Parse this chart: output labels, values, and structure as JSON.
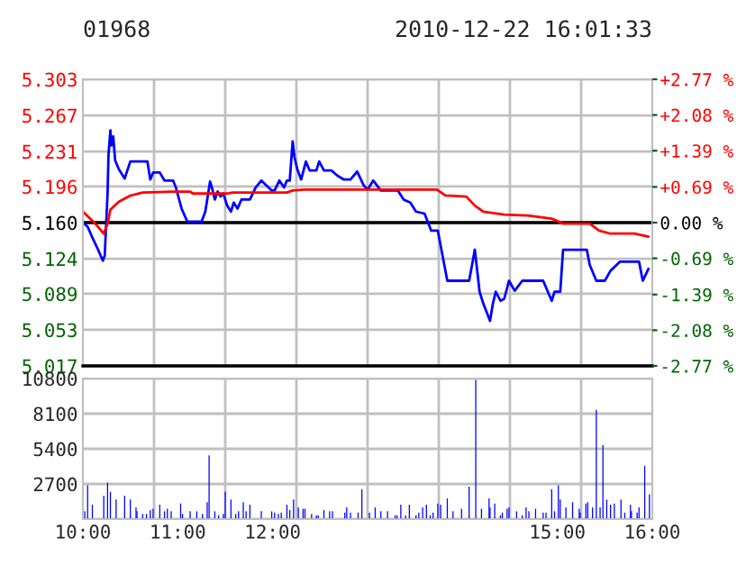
{
  "chart_data": [
    {
      "type": "line",
      "title": "01968",
      "subtitle": "2010-12-22 16:01:33",
      "series": [
        {
          "color": "#0000ff",
          "x": [
            10.0,
            10.05,
            10.1,
            10.16,
            10.21,
            10.23,
            10.26,
            10.27,
            10.29,
            10.3,
            10.32,
            10.34,
            10.38,
            10.44,
            10.5,
            10.68,
            10.71,
            10.74,
            10.81,
            10.86,
            10.95,
            10.98,
            11.04,
            11.1,
            11.25,
            11.29,
            11.34,
            11.36,
            11.39,
            11.42,
            11.45,
            11.48,
            11.52,
            11.56,
            11.59,
            11.63,
            11.67,
            11.76,
            11.82,
            11.88,
            11.99,
            12.02,
            12.07,
            12.12,
            12.15,
            12.18,
            12.21,
            12.23,
            12.26,
            12.3,
            12.35,
            12.39,
            12.46,
            12.49,
            12.54,
            12.62,
            12.68,
            12.75,
            12.82,
            12.89,
            12.96,
            13.0,
            13.06,
            13.14,
            13.32,
            13.38,
            13.45,
            13.51,
            13.6,
            13.67,
            13.74,
            13.79,
            13.84,
            14.07,
            14.13,
            14.18,
            14.22,
            14.29,
            14.32,
            14.35,
            14.4,
            14.44,
            14.49,
            14.55,
            14.63,
            14.85,
            14.94,
            14.97,
            15.03,
            15.06,
            15.12,
            15.31,
            15.34,
            15.41,
            15.5,
            15.56,
            15.66,
            15.86,
            15.9,
            15.96
          ],
          "values": [
            5.16,
            5.156,
            5.145,
            5.133,
            5.122,
            5.127,
            5.189,
            5.228,
            5.252,
            5.237,
            5.246,
            5.222,
            5.213,
            5.204,
            5.221,
            5.221,
            5.203,
            5.21,
            5.21,
            5.202,
            5.202,
            5.195,
            5.174,
            5.161,
            5.161,
            5.171,
            5.201,
            5.195,
            5.183,
            5.191,
            5.186,
            5.189,
            5.177,
            5.171,
            5.18,
            5.174,
            5.183,
            5.183,
            5.195,
            5.202,
            5.192,
            5.192,
            5.202,
            5.195,
            5.202,
            5.202,
            5.241,
            5.225,
            5.213,
            5.203,
            5.221,
            5.212,
            5.212,
            5.221,
            5.212,
            5.212,
            5.207,
            5.203,
            5.203,
            5.211,
            5.197,
            5.193,
            5.202,
            5.192,
            5.192,
            5.183,
            5.18,
            5.171,
            5.169,
            5.152,
            5.152,
            5.127,
            5.102,
            5.102,
            5.133,
            5.091,
            5.079,
            5.062,
            5.079,
            5.091,
            5.082,
            5.084,
            5.102,
            5.092,
            5.102,
            5.102,
            5.082,
            5.091,
            5.091,
            5.133,
            5.133,
            5.133,
            5.118,
            5.102,
            5.102,
            5.112,
            5.121,
            5.121,
            5.102,
            5.114
          ]
        },
        {
          "color": "#ff0000",
          "x": [
            10.0,
            10.13,
            10.22,
            10.26,
            10.29,
            10.38,
            10.5,
            10.63,
            10.95,
            11.13,
            11.16,
            11.52,
            11.58,
            12.15,
            12.21,
            12.33,
            13.0,
            13.73,
            13.82,
            14.04,
            14.13,
            14.22,
            14.44,
            14.69,
            14.94,
            15.06,
            15.34,
            15.44,
            15.56,
            15.81,
            15.96
          ],
          "values": [
            5.171,
            5.159,
            5.149,
            5.159,
            5.173,
            5.181,
            5.187,
            5.19,
            5.191,
            5.191,
            5.189,
            5.189,
            5.19,
            5.19,
            5.192,
            5.193,
            5.193,
            5.193,
            5.187,
            5.186,
            5.177,
            5.171,
            5.168,
            5.167,
            5.164,
            5.159,
            5.159,
            5.152,
            5.149,
            5.149,
            5.146
          ]
        }
      ],
      "xlim": [
        10,
        16
      ],
      "ylim": [
        5.017,
        5.303
      ],
      "yticks": [
        5.017,
        5.053,
        5.089,
        5.124,
        {
          "value": 5.16,
          "label": "5.160"
        },
        5.196,
        5.231,
        5.267,
        5.303
      ],
      "y2lim": [
        -2.77,
        2.77
      ],
      "y2ticks": [
        {
          "value": -2.77,
          "label": "-2.77 %"
        },
        {
          "value": -2.08,
          "label": "-2.08 %"
        },
        {
          "value": -1.39,
          "label": "-1.39 %"
        },
        {
          "value": -0.69,
          "label": "-0.69 %"
        },
        {
          "value": 0,
          "label": "0.00 %"
        },
        {
          "value": 0.69,
          "label": "+0.69 %"
        },
        {
          "value": 1.39,
          "label": "+1.39 %"
        },
        {
          "value": 2.08,
          "label": "+2.08 %"
        },
        {
          "value": 2.77,
          "label": "+2.77 %"
        }
      ],
      "ref_lines": [
        {
          "axis": "y",
          "value": 5.16,
          "color": "#000000"
        }
      ],
      "grid": true,
      "tick_labels": "y"
    },
    {
      "type": "bar",
      "color": "#0000ff",
      "x": [
        10.02,
        10.05,
        10.1,
        10.22,
        10.26,
        10.29,
        10.35,
        10.44,
        10.5,
        10.56,
        10.57,
        10.63,
        10.67,
        10.71,
        10.74,
        10.81,
        10.86,
        10.89,
        10.93,
        11.03,
        11.05,
        11.13,
        11.2,
        11.26,
        11.31,
        11.33,
        11.39,
        11.43,
        11.48,
        11.5,
        11.56,
        11.61,
        11.64,
        11.69,
        11.72,
        11.76,
        11.88,
        11.99,
        12.02,
        12.06,
        12.09,
        12.15,
        12.18,
        12.22,
        12.27,
        12.32,
        12.34,
        12.41,
        12.46,
        12.48,
        12.54,
        12.6,
        12.63,
        12.76,
        12.78,
        12.82,
        12.9,
        12.94,
        13.02,
        13.08,
        13.14,
        13.21,
        13.29,
        13.31,
        13.35,
        13.4,
        13.44,
        13.51,
        13.54,
        13.58,
        13.62,
        13.66,
        13.69,
        13.74,
        13.77,
        13.84,
        13.9,
        13.99,
        14.07,
        14.14,
        14.2,
        14.28,
        14.29,
        14.34,
        14.4,
        14.42,
        14.47,
        14.49,
        14.57,
        14.63,
        14.67,
        14.7,
        14.77,
        14.85,
        14.88,
        14.94,
        14.97,
        15.01,
        15.03,
        15.09,
        15.16,
        15.23,
        15.24,
        15.3,
        15.32,
        15.37,
        15.41,
        15.45,
        15.48,
        15.52,
        15.56,
        15.6,
        15.67,
        15.71,
        15.77,
        15.78,
        15.84,
        15.86,
        15.92,
        15.97
      ],
      "values": [
        600,
        2600,
        1100,
        1800,
        2800,
        2100,
        1500,
        1800,
        1500,
        900,
        600,
        400,
        400,
        700,
        800,
        1100,
        600,
        800,
        600,
        1200,
        400,
        600,
        600,
        400,
        1300,
        4900,
        600,
        300,
        400,
        2100,
        1500,
        400,
        600,
        1300,
        600,
        1100,
        600,
        600,
        500,
        400,
        500,
        1100,
        700,
        1500,
        900,
        800,
        800,
        400,
        300,
        300,
        700,
        600,
        600,
        500,
        900,
        500,
        500,
        2300,
        500,
        900,
        600,
        600,
        300,
        300,
        1100,
        300,
        1100,
        300,
        500,
        900,
        1100,
        300,
        500,
        1200,
        1100,
        1600,
        600,
        800,
        2500,
        10700,
        800,
        1600,
        900,
        1200,
        300,
        500,
        800,
        900,
        600,
        300,
        900,
        600,
        800,
        500,
        500,
        2300,
        600,
        2600,
        1500,
        900,
        1300,
        800,
        500,
        1200,
        1300,
        900,
        8400,
        900,
        5700,
        1500,
        1100,
        1200,
        1500,
        500,
        1100,
        600,
        500,
        900,
        4100,
        1900
      ],
      "xlim": [
        10,
        16
      ],
      "xticks": [
        {
          "value": 10,
          "label": "10:00"
        },
        {
          "value": 10.75,
          "label": null
        },
        {
          "value": 11,
          "label": "11:00"
        },
        {
          "value": 11.5,
          "label": null
        },
        {
          "value": 12,
          "label": "12:00"
        },
        {
          "value": 12.25,
          "label": null
        },
        {
          "value": 13,
          "label": null
        },
        {
          "value": 13.75,
          "label": null
        },
        {
          "value": 14.5,
          "label": null
        },
        {
          "value": 15,
          "label": "15:00"
        },
        {
          "value": 15.25,
          "label": null
        },
        {
          "value": 16,
          "label": "16:00"
        }
      ],
      "ylim": [
        0,
        10800
      ],
      "yticks": [
        {
          "value": 0,
          "label": null
        },
        2700,
        5400,
        8100,
        10800
      ],
      "grid": true
    }
  ]
}
